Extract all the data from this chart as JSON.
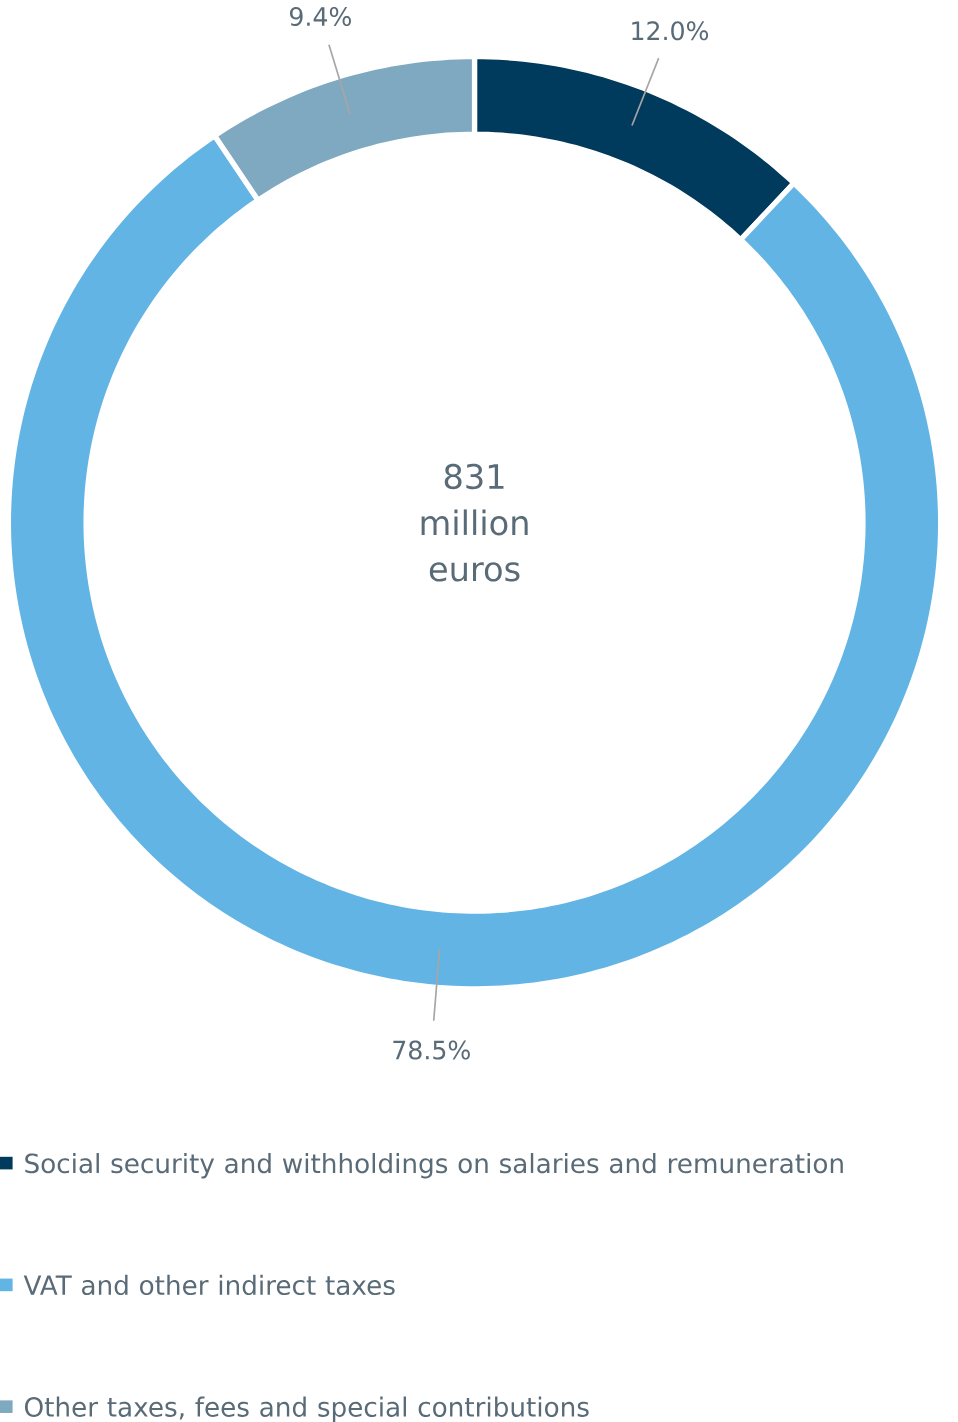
{
  "chart_data": {
    "type": "donut",
    "categories": [
      "Social security and withholdings on salaries and remuneration",
      "VAT and other indirect taxes",
      "Other taxes, fees and special contributions"
    ],
    "values": [
      12.0,
      78.5,
      9.4
    ],
    "colors": [
      "#003a5c",
      "#62b4e5",
      "#7fa9c0"
    ],
    "value_labels": [
      "12.0%",
      "78.5%",
      "9.4%"
    ],
    "annotations": [
      "831 million euros"
    ],
    "legend": "bottom"
  }
}
